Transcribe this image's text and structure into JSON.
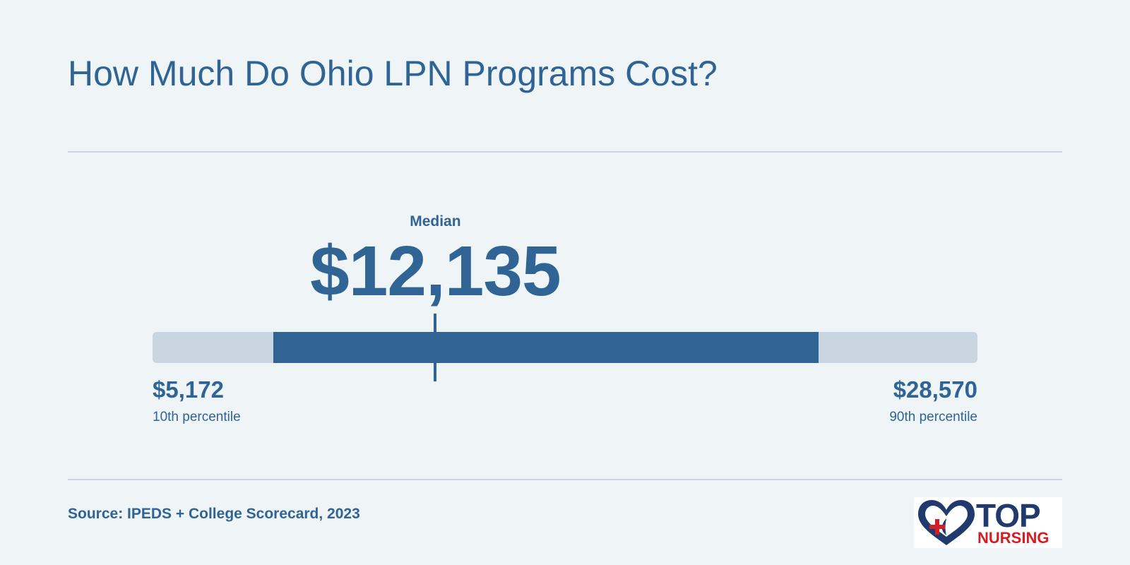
{
  "title": "How Much Do Ohio LPN Programs Cost?",
  "source": "Source: IPEDS + College Scorecard, 2023",
  "logo": {
    "word1": "TOP",
    "word2": "NURSING"
  },
  "colors": {
    "accent": "#2f6494",
    "track": "#cad5e2",
    "background": "#eff4f7",
    "logo_navy": "#213a6e",
    "logo_red": "#d41e26"
  },
  "chart_data": {
    "type": "range",
    "median_label": "Median",
    "median_value": 12135,
    "median_display": "$12,135",
    "p10": {
      "value": 5172,
      "display": "$5,172",
      "label": "10th percentile"
    },
    "p90": {
      "value": 28570,
      "display": "$28,570",
      "label": "90th percentile"
    }
  }
}
